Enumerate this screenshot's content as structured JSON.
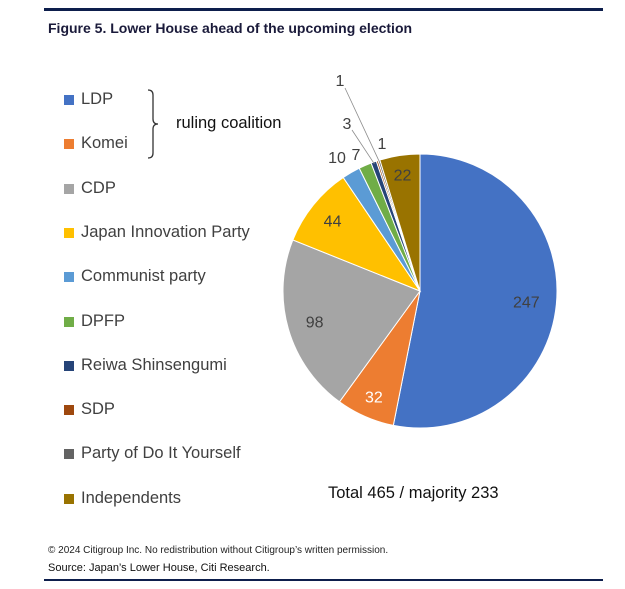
{
  "figure_title": "Figure 5. Lower House ahead of the upcoming election",
  "coalition_label": "ruling coalition",
  "total_text": "Total 465 / majority 233",
  "footer": {
    "copyright": "© 2024 Citigroup Inc. No redistribution without Citigroup’s written permission.",
    "source": "Source: Japan’s Lower House, Citi Research."
  },
  "chart_data": {
    "type": "pie",
    "title": "",
    "legend_position": "left",
    "slices": [
      {
        "name": "LDP",
        "value": 247,
        "color": "#4472C4",
        "label_color": "#404040"
      },
      {
        "name": "Komei",
        "value": 32,
        "color": "#ED7D31",
        "label_color": "#ffffff"
      },
      {
        "name": "CDP",
        "value": 98,
        "color": "#A5A5A5",
        "label_color": "#404040"
      },
      {
        "name": "Japan Innovation Party",
        "value": 44,
        "color": "#FFC000",
        "label_color": "#404040"
      },
      {
        "name": "Communist party",
        "value": 10,
        "color": "#5B9BD5",
        "label_color": "#404040"
      },
      {
        "name": "DPFP",
        "value": 7,
        "color": "#70AD47",
        "label_color": "#404040"
      },
      {
        "name": "Reiwa Shinsengumi",
        "value": 3,
        "color": "#264478",
        "label_color": "#404040"
      },
      {
        "name": "SDP",
        "value": 1,
        "color": "#9E480E",
        "label_color": "#404040"
      },
      {
        "name": "Party of Do It Yourself",
        "value": 1,
        "color": "#636363",
        "label_color": "#404040"
      },
      {
        "name": "Independents",
        "value": 22,
        "color": "#997300",
        "label_color": "#404040"
      }
    ],
    "total": 465,
    "majority": 233
  }
}
